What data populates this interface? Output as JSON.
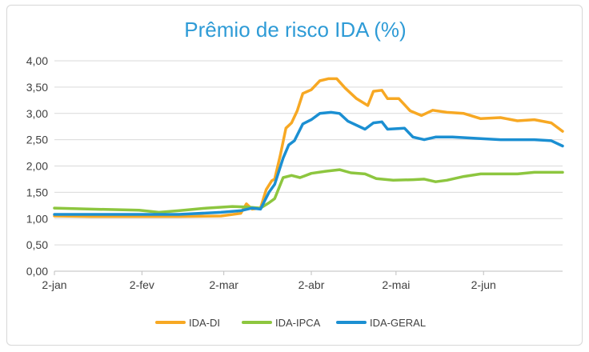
{
  "chart_data": {
    "type": "line",
    "title": "Prêmio de risco IDA (%)",
    "xlabel": "",
    "ylabel": "",
    "ylim": [
      0,
      4
    ],
    "y_ticks": [
      "0,00",
      "0,50",
      "1,00",
      "1,50",
      "2,00",
      "2,50",
      "3,00",
      "3,50",
      "4,00"
    ],
    "x_ticks": [
      "2-jan",
      "2-fev",
      "2-mar",
      "2-abr",
      "2-mai",
      "2-jun"
    ],
    "grid": true,
    "legend_position": "bottom",
    "series": [
      {
        "name": "IDA-DI",
        "color": "#f7a823",
        "points": [
          [
            "2020-01-02",
            1.05
          ],
          [
            "2020-01-15",
            1.04
          ],
          [
            "2020-02-01",
            1.04
          ],
          [
            "2020-02-15",
            1.04
          ],
          [
            "2020-03-01",
            1.05
          ],
          [
            "2020-03-08",
            1.1
          ],
          [
            "2020-03-10",
            1.28
          ],
          [
            "2020-03-12",
            1.18
          ],
          [
            "2020-03-15",
            1.2
          ],
          [
            "2020-03-17",
            1.55
          ],
          [
            "2020-03-19",
            1.72
          ],
          [
            "2020-03-20",
            1.75
          ],
          [
            "2020-03-22",
            2.2
          ],
          [
            "2020-03-24",
            2.72
          ],
          [
            "2020-03-26",
            2.82
          ],
          [
            "2020-03-28",
            3.05
          ],
          [
            "2020-03-30",
            3.38
          ],
          [
            "2020-04-02",
            3.45
          ],
          [
            "2020-04-05",
            3.62
          ],
          [
            "2020-04-08",
            3.66
          ],
          [
            "2020-04-11",
            3.66
          ],
          [
            "2020-04-14",
            3.48
          ],
          [
            "2020-04-18",
            3.28
          ],
          [
            "2020-04-22",
            3.15
          ],
          [
            "2020-04-24",
            3.42
          ],
          [
            "2020-04-27",
            3.44
          ],
          [
            "2020-04-29",
            3.28
          ],
          [
            "2020-05-03",
            3.28
          ],
          [
            "2020-05-07",
            3.05
          ],
          [
            "2020-05-11",
            2.96
          ],
          [
            "2020-05-15",
            3.06
          ],
          [
            "2020-05-20",
            3.02
          ],
          [
            "2020-05-26",
            3.0
          ],
          [
            "2020-06-01",
            2.9
          ],
          [
            "2020-06-08",
            2.92
          ],
          [
            "2020-06-14",
            2.86
          ],
          [
            "2020-06-20",
            2.88
          ],
          [
            "2020-06-26",
            2.82
          ],
          [
            "2020-06-30",
            2.66
          ]
        ]
      },
      {
        "name": "IDA-IPCA",
        "color": "#8dc63f",
        "points": [
          [
            "2020-01-02",
            1.2
          ],
          [
            "2020-01-15",
            1.18
          ],
          [
            "2020-02-01",
            1.16
          ],
          [
            "2020-02-08",
            1.12
          ],
          [
            "2020-02-15",
            1.15
          ],
          [
            "2020-02-25",
            1.2
          ],
          [
            "2020-03-05",
            1.23
          ],
          [
            "2020-03-10",
            1.22
          ],
          [
            "2020-03-15",
            1.2
          ],
          [
            "2020-03-18",
            1.3
          ],
          [
            "2020-03-20",
            1.38
          ],
          [
            "2020-03-23",
            1.78
          ],
          [
            "2020-03-26",
            1.82
          ],
          [
            "2020-03-29",
            1.78
          ],
          [
            "2020-04-02",
            1.86
          ],
          [
            "2020-04-07",
            1.9
          ],
          [
            "2020-04-12",
            1.93
          ],
          [
            "2020-04-16",
            1.87
          ],
          [
            "2020-04-21",
            1.85
          ],
          [
            "2020-04-25",
            1.76
          ],
          [
            "2020-05-01",
            1.73
          ],
          [
            "2020-05-08",
            1.74
          ],
          [
            "2020-05-12",
            1.75
          ],
          [
            "2020-05-16",
            1.7
          ],
          [
            "2020-05-20",
            1.73
          ],
          [
            "2020-05-26",
            1.8
          ],
          [
            "2020-06-01",
            1.85
          ],
          [
            "2020-06-08",
            1.85
          ],
          [
            "2020-06-14",
            1.85
          ],
          [
            "2020-06-20",
            1.88
          ],
          [
            "2020-06-26",
            1.88
          ],
          [
            "2020-06-30",
            1.88
          ]
        ]
      },
      {
        "name": "IDA-GERAL",
        "color": "#1b8fd2",
        "points": [
          [
            "2020-01-02",
            1.08
          ],
          [
            "2020-01-15",
            1.08
          ],
          [
            "2020-02-01",
            1.08
          ],
          [
            "2020-02-15",
            1.08
          ],
          [
            "2020-03-01",
            1.12
          ],
          [
            "2020-03-08",
            1.15
          ],
          [
            "2020-03-12",
            1.2
          ],
          [
            "2020-03-15",
            1.18
          ],
          [
            "2020-03-18",
            1.5
          ],
          [
            "2020-03-20",
            1.65
          ],
          [
            "2020-03-23",
            2.15
          ],
          [
            "2020-03-25",
            2.4
          ],
          [
            "2020-03-27",
            2.48
          ],
          [
            "2020-03-30",
            2.8
          ],
          [
            "2020-04-02",
            2.88
          ],
          [
            "2020-04-05",
            3.0
          ],
          [
            "2020-04-09",
            3.02
          ],
          [
            "2020-04-12",
            3.0
          ],
          [
            "2020-04-15",
            2.85
          ],
          [
            "2020-04-21",
            2.7
          ],
          [
            "2020-04-24",
            2.82
          ],
          [
            "2020-04-27",
            2.84
          ],
          [
            "2020-04-29",
            2.7
          ],
          [
            "2020-05-05",
            2.72
          ],
          [
            "2020-05-08",
            2.55
          ],
          [
            "2020-05-12",
            2.5
          ],
          [
            "2020-05-16",
            2.55
          ],
          [
            "2020-05-22",
            2.55
          ],
          [
            "2020-06-01",
            2.52
          ],
          [
            "2020-06-08",
            2.5
          ],
          [
            "2020-06-14",
            2.5
          ],
          [
            "2020-06-20",
            2.5
          ],
          [
            "2020-06-26",
            2.48
          ],
          [
            "2020-06-30",
            2.38
          ]
        ]
      }
    ]
  }
}
